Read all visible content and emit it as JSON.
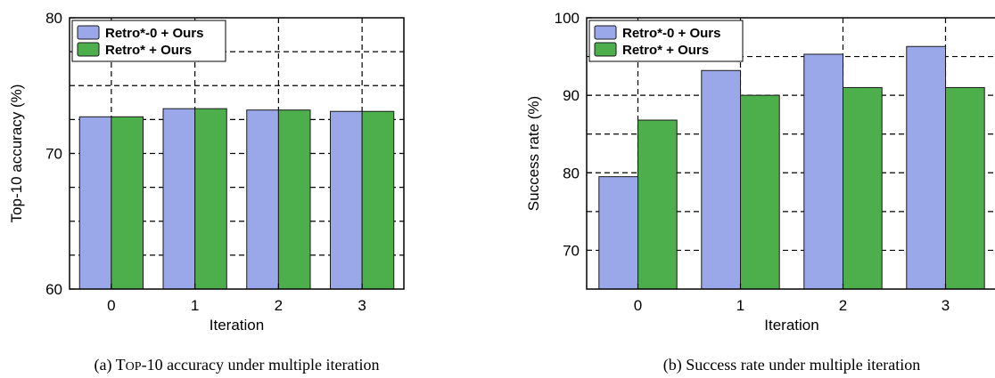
{
  "colors": {
    "series0": "#9aa7e8",
    "series1": "#4caf4c",
    "grid": "#000000"
  },
  "chart_data": [
    {
      "type": "bar",
      "caption_prefix": "(a) T",
      "caption_small": "OP",
      "caption_suffix": "-10 accuracy under multiple iteration",
      "xlabel": "Iteration",
      "ylabel": "Top-10 accuracy (%)",
      "categories": [
        "0",
        "1",
        "2",
        "3"
      ],
      "ylim": [
        60,
        80
      ],
      "yticks": [
        60,
        70,
        80
      ],
      "grid_lines": [
        62.5,
        65,
        67.5,
        72.5,
        75,
        77.5
      ],
      "series": [
        {
          "name": "Retro*-0 + Ours",
          "values": [
            72.7,
            73.3,
            73.2,
            73.1
          ]
        },
        {
          "name": "Retro* + Ours",
          "values": [
            72.7,
            73.3,
            73.2,
            73.1
          ]
        }
      ],
      "legend": "top-left"
    },
    {
      "type": "bar",
      "caption": "(b) Success rate under multiple iteration",
      "xlabel": "Iteration",
      "ylabel": "Success rate (%)",
      "categories": [
        "0",
        "1",
        "2",
        "3"
      ],
      "ylim": [
        65,
        100
      ],
      "yticks": [
        70,
        80,
        90,
        100
      ],
      "grid_lines": [
        75,
        85,
        95
      ],
      "series": [
        {
          "name": "Retro*-0 + Ours",
          "values": [
            79.5,
            93.2,
            95.3,
            96.3
          ]
        },
        {
          "name": "Retro* + Ours",
          "values": [
            86.8,
            90.0,
            91.0,
            91.0
          ]
        }
      ],
      "legend": "top-left"
    }
  ]
}
